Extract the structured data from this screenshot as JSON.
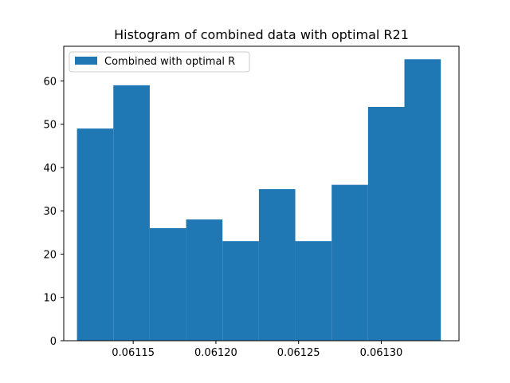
{
  "chart_data": {
    "type": "bar",
    "title": "Histogram of combined data with optimal R21",
    "xlabel": "",
    "ylabel": "",
    "bin_edges": [
      0.061116,
      0.061138,
      0.06116,
      0.061182,
      0.061204,
      0.061226,
      0.061248,
      0.06127,
      0.061292,
      0.061314,
      0.061336
    ],
    "values": [
      49,
      59,
      26,
      28,
      23,
      35,
      23,
      36,
      54,
      65
    ],
    "xlim": [
      0.061108,
      0.061347
    ],
    "ylim": [
      0,
      68
    ],
    "xticks": [
      0.06115,
      0.0612,
      0.06125,
      0.0613
    ],
    "xtick_labels": [
      "0.06115",
      "0.06120",
      "0.06125",
      "0.06130"
    ],
    "yticks": [
      0,
      10,
      20,
      30,
      40,
      50,
      60
    ],
    "ytick_labels": [
      "0",
      "10",
      "20",
      "30",
      "40",
      "50",
      "60"
    ],
    "series": [
      {
        "name": "Combined with optimal R",
        "color": "#1f77b4"
      }
    ],
    "legend_position": "upper-left",
    "grid": false
  }
}
